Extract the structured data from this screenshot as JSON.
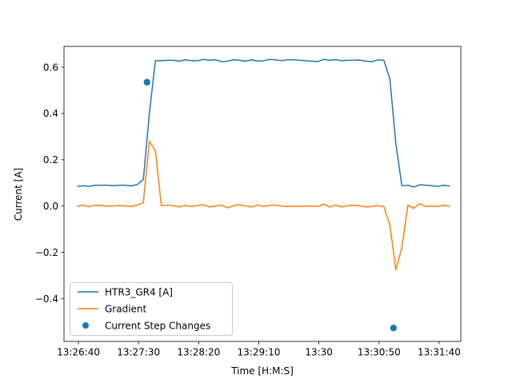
{
  "chart_data": {
    "type": "line",
    "title": "",
    "xlabel": "Time [H:M:S]",
    "ylabel": "Current [A]",
    "x_tick_labels": [
      "13:26:40",
      "13:27:30",
      "13:28:20",
      "13:29:10",
      "13:30",
      "13:30:50",
      "13:31:40"
    ],
    "y_tick_labels": [
      "−0.4",
      "−0.2",
      "0.0",
      "0.2",
      "0.4",
      "0.6"
    ],
    "y_ticks": [
      -0.4,
      -0.2,
      0.0,
      0.2,
      0.4,
      0.6
    ],
    "ylim": [
      -0.585,
      0.69
    ],
    "xlim": [
      "13:26:28",
      "13:31:58"
    ],
    "grid": false,
    "legend_position": "lower-left",
    "series": [
      {
        "name": "HTR3_GR4 [A]",
        "color": "#1f77b4",
        "x": [
          "13:26:39",
          "13:26:44",
          "13:26:49",
          "13:26:54",
          "13:26:59",
          "13:27:04",
          "13:27:09",
          "13:27:14",
          "13:27:19",
          "13:27:24",
          "13:27:29",
          "13:27:34",
          "13:27:39",
          "13:27:44",
          "13:27:49",
          "13:27:54",
          "13:27:59",
          "13:28:04",
          "13:28:09",
          "13:28:14",
          "13:28:19",
          "13:28:24",
          "13:28:29",
          "13:28:34",
          "13:28:39",
          "13:28:44",
          "13:28:49",
          "13:28:54",
          "13:28:59",
          "13:29:04",
          "13:29:09",
          "13:29:14",
          "13:29:19",
          "13:29:24",
          "13:29:29",
          "13:29:34",
          "13:29:39",
          "13:29:44",
          "13:29:49",
          "13:29:54",
          "13:29:59",
          "13:30:04",
          "13:30:09",
          "13:30:14",
          "13:30:19",
          "13:30:24",
          "13:30:29",
          "13:30:34",
          "13:30:39",
          "13:30:44",
          "13:30:49",
          "13:30:54",
          "13:30:59",
          "13:31:04",
          "13:31:09",
          "13:31:14",
          "13:31:19",
          "13:31:24",
          "13:31:29",
          "13:31:34",
          "13:31:39",
          "13:31:44",
          "13:31:49"
        ],
        "values": [
          0.085,
          0.088,
          0.085,
          0.09,
          0.09,
          0.09,
          0.088,
          0.09,
          0.09,
          0.087,
          0.093,
          0.115,
          0.4,
          0.628,
          0.628,
          0.63,
          0.63,
          0.626,
          0.632,
          0.628,
          0.628,
          0.634,
          0.63,
          0.632,
          0.624,
          0.626,
          0.632,
          0.63,
          0.626,
          0.632,
          0.626,
          0.628,
          0.634,
          0.632,
          0.628,
          0.632,
          0.632,
          0.63,
          0.628,
          0.626,
          0.624,
          0.634,
          0.63,
          0.633,
          0.628,
          0.63,
          0.63,
          0.631,
          0.626,
          0.624,
          0.632,
          0.63,
          0.55,
          0.27,
          0.088,
          0.09,
          0.082,
          0.092,
          0.09,
          0.088,
          0.085,
          0.09,
          0.086
        ]
      },
      {
        "name": "Gradient",
        "color": "#ff7f0e",
        "x": [
          "13:26:39",
          "13:26:44",
          "13:26:49",
          "13:26:54",
          "13:26:59",
          "13:27:04",
          "13:27:09",
          "13:27:14",
          "13:27:19",
          "13:27:24",
          "13:27:29",
          "13:27:34",
          "13:27:39",
          "13:27:44",
          "13:27:49",
          "13:27:54",
          "13:27:59",
          "13:28:04",
          "13:28:09",
          "13:28:14",
          "13:28:19",
          "13:28:24",
          "13:28:29",
          "13:28:34",
          "13:28:39",
          "13:28:44",
          "13:28:49",
          "13:28:54",
          "13:28:59",
          "13:29:04",
          "13:29:09",
          "13:29:14",
          "13:29:19",
          "13:29:24",
          "13:29:29",
          "13:29:34",
          "13:29:39",
          "13:29:44",
          "13:29:49",
          "13:29:54",
          "13:29:59",
          "13:30:04",
          "13:30:09",
          "13:30:14",
          "13:30:19",
          "13:30:24",
          "13:30:29",
          "13:30:34",
          "13:30:39",
          "13:30:44",
          "13:30:49",
          "13:30:54",
          "13:30:59",
          "13:31:04",
          "13:31:09",
          "13:31:14",
          "13:31:19",
          "13:31:24",
          "13:31:29",
          "13:31:34",
          "13:31:39",
          "13:31:44",
          "13:31:49"
        ],
        "values": [
          -0.002,
          0.004,
          -0.003,
          0.004,
          0.002,
          0.0,
          0.0,
          0.003,
          0.0,
          -0.002,
          0.004,
          0.015,
          0.28,
          0.24,
          0.002,
          0.004,
          0.002,
          -0.004,
          0.003,
          -0.002,
          0.002,
          0.006,
          -0.004,
          0.0,
          0.004,
          -0.008,
          0.002,
          0.006,
          0.0,
          -0.004,
          0.004,
          -0.002,
          0.003,
          0.004,
          0.0,
          -0.002,
          0.0,
          -0.001,
          0.0,
          0.0,
          -0.002,
          0.008,
          -0.004,
          0.004,
          -0.004,
          0.002,
          0.003,
          0.001,
          -0.004,
          -0.002,
          0.002,
          -0.002,
          -0.08,
          -0.275,
          -0.18,
          0.004,
          -0.01,
          0.01,
          -0.002,
          0.0,
          -0.002,
          0.004,
          -0.002
        ]
      }
    ],
    "scatter": {
      "name": "Current Step Changes",
      "color": "#1f77b4",
      "x": [
        "13:27:37",
        "13:31:02"
      ],
      "values": [
        0.535,
        -0.527
      ]
    }
  }
}
